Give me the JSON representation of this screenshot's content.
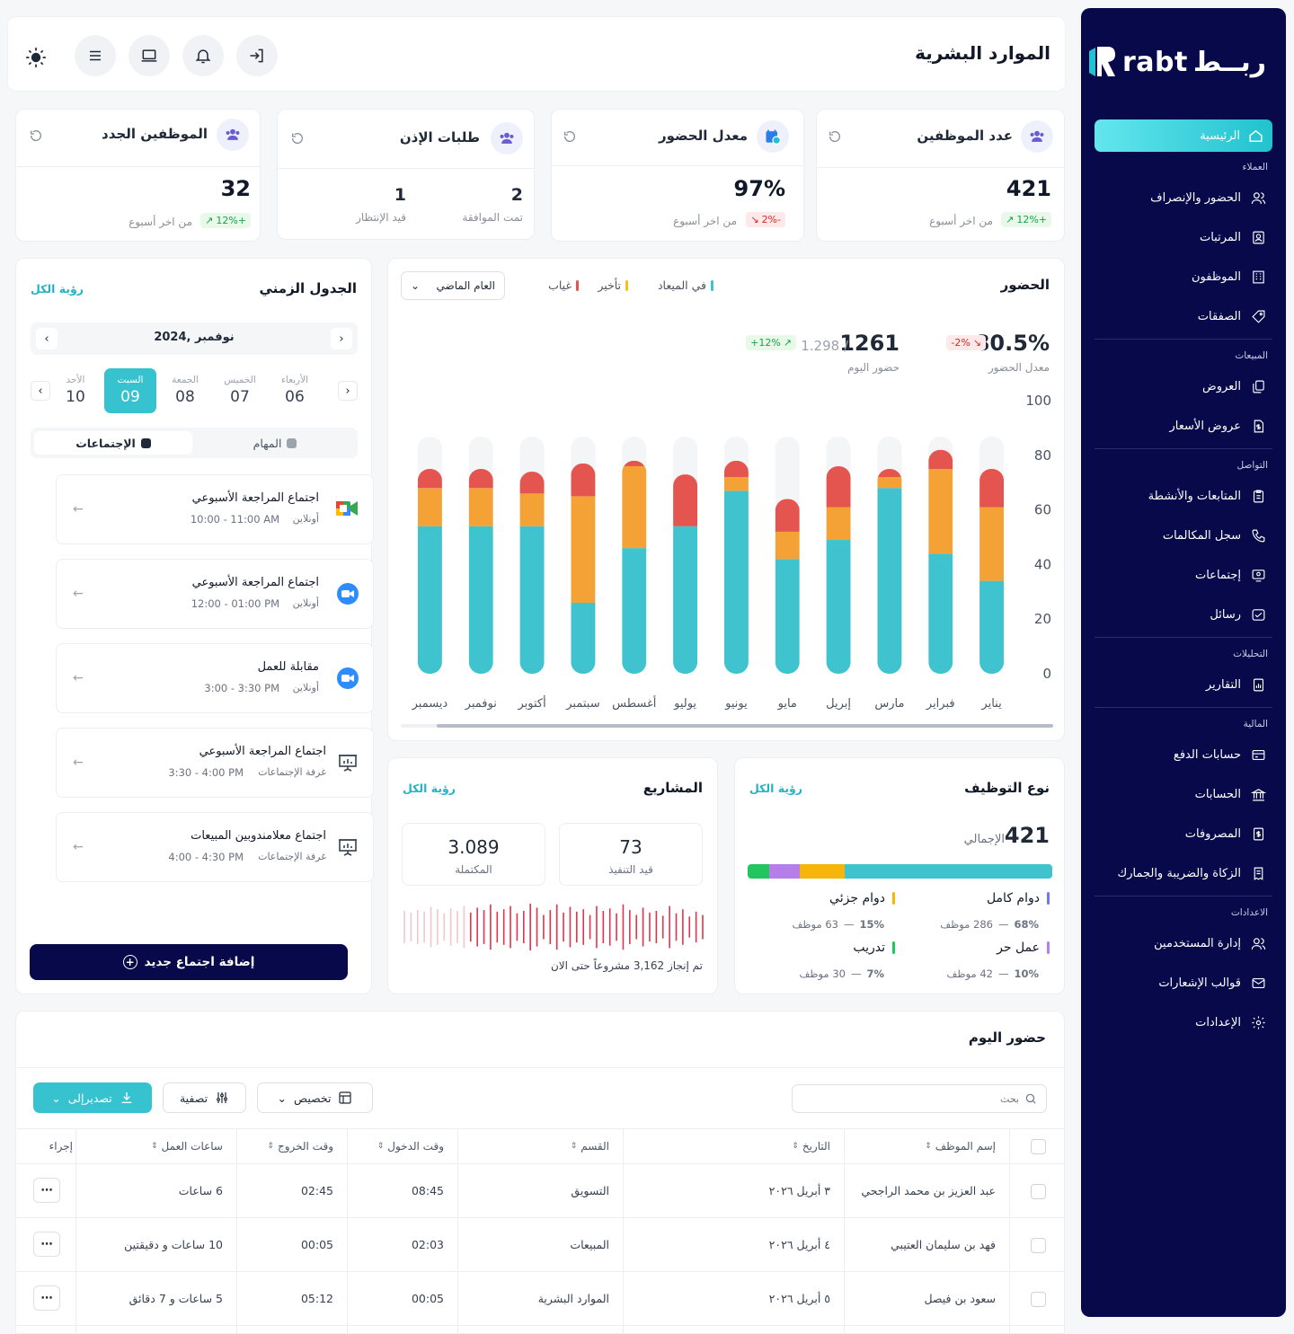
{
  "brand": {
    "name": "rabt",
    "arabic": "ربــط"
  },
  "sidebar": {
    "home": "الرئيسية",
    "sections": [
      {
        "title": "العملاء",
        "items": [
          "الحضور والإنصراف",
          "المرتبات",
          "الموظفون",
          "الصفقات"
        ]
      },
      {
        "title": "المبيعات",
        "items": [
          "العروض",
          "عروض الأسعار"
        ]
      },
      {
        "title": "التواصل",
        "items": [
          "المتابعات والأنشطة",
          "سجل المكالمات",
          "إجتماعات",
          "رسائل"
        ]
      },
      {
        "title": "التحليلات",
        "items": [
          "التقارير"
        ]
      },
      {
        "title": "المالية",
        "items": [
          "حسابات الدفع",
          "الحسابات",
          "المصروفات",
          "الزكاة والضريبة والجمارك"
        ]
      },
      {
        "title": "الاعدادات",
        "items": [
          "إدارة المستخدمين",
          "قوالب الإشعارات",
          "الإعدادات"
        ]
      }
    ]
  },
  "header": {
    "title": "الموارد البشرية"
  },
  "stats": [
    {
      "title": "عدد الموظفين",
      "value": "421",
      "change": "+12%",
      "note": "من اخر أسبوع",
      "trend": "up"
    },
    {
      "title": "معدل الحضور",
      "value": "97%",
      "change": "-2%",
      "note": "من اخر أسبوع",
      "trend": "down"
    },
    {
      "title": "طلبات الإذن",
      "approved_value": "2",
      "approved_label": "تمت الموافقة",
      "pending_value": "1",
      "pending_label": "قيد الإنتظار"
    },
    {
      "title": "الموظفين الجدد",
      "value": "32",
      "change": "+12%",
      "note": "من اخر أسبوع",
      "trend": "up"
    }
  ],
  "attendance": {
    "title": "الحضور",
    "legend": [
      {
        "label": "في الميعاد",
        "color": "#3ec3cf"
      },
      {
        "label": "تأخير",
        "color": "#f4a236"
      },
      {
        "label": "غياب",
        "color": "#e4554f"
      }
    ],
    "filter": "العام الماضي",
    "rate": {
      "value": "80.5%",
      "change": "-2%",
      "label": "معدل الحضور"
    },
    "today": {
      "value": "1261",
      "total": "1.298 /",
      "change": "+12%",
      "label": "حضور اليوم"
    }
  },
  "chart_data": {
    "type": "bar",
    "stacked": true,
    "categories": [
      "يناير",
      "فبراير",
      "مارس",
      "إبريل",
      "مايو",
      "يونيو",
      "يوليو",
      "أغسطس",
      "سبتمبر",
      "أكتوبر",
      "نوفمبر",
      "ديسمبر"
    ],
    "series": [
      {
        "name": "في الميعاد",
        "values": [
          34,
          44,
          68,
          49,
          42,
          67,
          54,
          46,
          26,
          54,
          54,
          54
        ]
      },
      {
        "name": "تأخير",
        "values": [
          27,
          31,
          4,
          12,
          10,
          5,
          0,
          30,
          39,
          12,
          14,
          14
        ]
      },
      {
        "name": "غياب",
        "values": [
          14,
          7,
          3,
          15,
          12,
          6,
          19,
          2,
          12,
          8,
          7,
          7
        ]
      }
    ],
    "ylim": [
      0,
      100
    ],
    "yticks": [
      0,
      20,
      40,
      60,
      80,
      100
    ]
  },
  "timeline": {
    "title": "الجدول الزمني",
    "view_all": "رؤية الكل",
    "month": "نوفمبر ,2024",
    "days": [
      {
        "name": "الأربعاء",
        "num": "06"
      },
      {
        "name": "الخميس",
        "num": "07"
      },
      {
        "name": "الجمعة",
        "num": "08"
      },
      {
        "name": "السبت",
        "num": "09",
        "active": true
      },
      {
        "name": "الأحد",
        "num": "10"
      }
    ],
    "tabs": [
      "الإجتماعات",
      "المهام"
    ],
    "meetings": [
      {
        "title": "اجتماع المراجعة الأسبوعي",
        "time": "10:00 - 11:00 AM",
        "place": "أونلاين",
        "icon": "google-meet-icon"
      },
      {
        "title": "اجتماع المراجعة الأسبوعي",
        "time": "12:00 - 01:00 PM",
        "place": "أونلاين",
        "icon": "zoom-icon"
      },
      {
        "title": "مقابلة للعمل",
        "time": "3:00 - 3:30 PM",
        "place": "أونلاين",
        "icon": "zoom-icon"
      },
      {
        "title": "اجتماع المراجعة الأسبوعي",
        "time": "3:30 - 4:00 PM",
        "place": "غرفة الإجتماعات",
        "icon": "presentation-icon"
      },
      {
        "title": "اجتماع معلامندوبين المبيعات",
        "time": "4:00 - 4:30 PM",
        "place": "غرفة الإجتماعات",
        "icon": "presentation-icon"
      }
    ],
    "add_button": "إضافة اجتماع جديد"
  },
  "employment": {
    "title": "نوع التوظيف",
    "view_all": "رؤية الكل",
    "total": "421",
    "total_label": "الإجمالي",
    "types": [
      {
        "label": "دوام كامل",
        "pct": "68%",
        "count": "286 موظف",
        "color": "#3ec3cf",
        "share": 68
      },
      {
        "label": "دوام جزئي",
        "pct": "15%",
        "count": "63 موظف",
        "color": "#f5b50a",
        "share": 15
      },
      {
        "label": "عمل حر",
        "pct": "10%",
        "count": "42 موظف",
        "color": "#b57ee8",
        "share": 10
      },
      {
        "label": "تدريب",
        "pct": "7%",
        "count": "30 موظف",
        "color": "#22c55e",
        "share": 7
      }
    ]
  },
  "projects": {
    "title": "المشاريع",
    "view_all": "رؤية الكل",
    "in_progress": "73",
    "in_progress_label": "قيد التنفيذ",
    "completed": "3.089",
    "completed_label": "المكتملة",
    "note": "تم إنجاز 3,162 مشروعاً حتى الان"
  },
  "today_attendance": {
    "title": "حضور اليوم",
    "search_placeholder": "بحث",
    "customize": "تخصيص",
    "filter": "تصفية",
    "export": "تصديرإلى",
    "columns": [
      "إسم الموظف",
      "التاريخ",
      "القسم",
      "وقت الدخول",
      "وقت الخروج",
      "ساعات العمل",
      "إجراء"
    ],
    "rows": [
      {
        "name": "عبد العزيز بن محمد الراجحي",
        "date": "٣ أبريل ٢٠٢٦",
        "dept": "التسويق",
        "in": "08:45",
        "out": "02:45",
        "hours": "6 ساعات"
      },
      {
        "name": "فهد بن سليمان العتيبي",
        "date": "٤ أبريل ٢٠٢٦",
        "dept": "المبيعات",
        "in": "02:03",
        "out": "00:05",
        "hours": "10 ساعات و دقيقتين"
      },
      {
        "name": "سعود بن فيصل",
        "date": "٥ أبريل ٢٠٢٦",
        "dept": "الموارد البشرية",
        "in": "00:05",
        "out": "05:12",
        "hours": "5 ساعات و 7 دقائق"
      }
    ]
  }
}
